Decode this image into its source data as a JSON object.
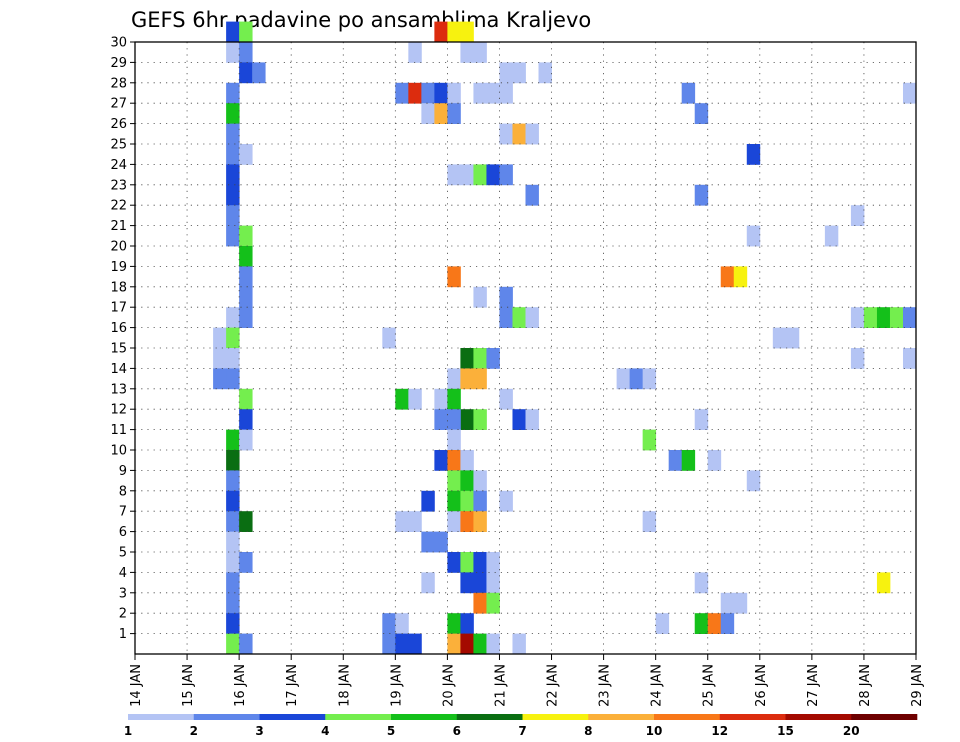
{
  "chart_data": {
    "type": "heatmap",
    "title": "GEFS 6hr padavine po ansamblima Kraljevo",
    "ylabel": "",
    "xlabel": "",
    "grid": "dotted",
    "y_ticks": [
      "1",
      "2",
      "3",
      "4",
      "5",
      "6",
      "7",
      "8",
      "9",
      "10",
      "11",
      "12",
      "13",
      "14",
      "15",
      "16",
      "17",
      "18",
      "19",
      "20",
      "21",
      "22",
      "23",
      "24",
      "25",
      "26",
      "27",
      "28",
      "29",
      "30"
    ],
    "ylim": [
      0,
      30
    ],
    "x_ticks": [
      "14 JAN",
      "15 JAN",
      "16 JAN",
      "17 JAN",
      "18 JAN",
      "19 JAN",
      "20 JAN",
      "21 JAN",
      "22 JAN",
      "23 JAN",
      "24 JAN",
      "25 JAN",
      "26 JAN",
      "27 JAN",
      "28 JAN",
      "29 JAN"
    ],
    "xlim_days": [
      14,
      29
    ],
    "time_step_hours": 6,
    "colorbar": {
      "labels": [
        "1",
        "2",
        "3",
        "4",
        "5",
        "6",
        "7",
        "8",
        "10",
        "12",
        "15",
        "20"
      ],
      "colors": [
        "#b4c4f4",
        "#5f86ea",
        "#1a46d8",
        "#74ee4e",
        "#14c01a",
        "#0a6e12",
        "#f7f20f",
        "#fbb03a",
        "#f87718",
        "#dc2c0e",
        "#a40a00",
        "#6e0000"
      ]
    },
    "cells_note": "Each cell: [day, ensemble_member, precip_class_index]. Day is the start of the 6-hour bin; class index maps into colorbar.colors.",
    "cells": [
      [
        15.75,
        30,
        2
      ],
      [
        16.0,
        30,
        3
      ],
      [
        15.75,
        29,
        0
      ],
      [
        16.0,
        29,
        1
      ],
      [
        16.0,
        28,
        2
      ],
      [
        16.25,
        28,
        1
      ],
      [
        15.75,
        27,
        1
      ],
      [
        15.75,
        26,
        4
      ],
      [
        15.75,
        25,
        1
      ],
      [
        15.75,
        24,
        1
      ],
      [
        16.0,
        24,
        0
      ],
      [
        15.75,
        23,
        2
      ],
      [
        15.75,
        22,
        2
      ],
      [
        15.75,
        21,
        1
      ],
      [
        15.75,
        20,
        1
      ],
      [
        16.0,
        20,
        3
      ],
      [
        16.0,
        19,
        4
      ],
      [
        16.0,
        18,
        1
      ],
      [
        16.0,
        17,
        1
      ],
      [
        15.75,
        16,
        0
      ],
      [
        16.0,
        16,
        1
      ],
      [
        15.5,
        15,
        0
      ],
      [
        15.75,
        15,
        3
      ],
      [
        15.5,
        14,
        0
      ],
      [
        15.75,
        14,
        0
      ],
      [
        15.5,
        13,
        1
      ],
      [
        15.75,
        13,
        1
      ],
      [
        16.0,
        12,
        3
      ],
      [
        16.0,
        11,
        2
      ],
      [
        15.75,
        10,
        4
      ],
      [
        16.0,
        10,
        0
      ],
      [
        15.75,
        9,
        5
      ],
      [
        15.75,
        8,
        1
      ],
      [
        15.75,
        7,
        2
      ],
      [
        15.75,
        6,
        1
      ],
      [
        16.0,
        6,
        5
      ],
      [
        15.75,
        5,
        0
      ],
      [
        15.75,
        4,
        0
      ],
      [
        16.0,
        4,
        1
      ],
      [
        15.75,
        3,
        1
      ],
      [
        15.75,
        2,
        1
      ],
      [
        15.75,
        1,
        2
      ],
      [
        15.75,
        0,
        3
      ],
      [
        16.0,
        0,
        1
      ],
      [
        19.75,
        30,
        9
      ],
      [
        20.0,
        30,
        6
      ],
      [
        20.25,
        30,
        6
      ],
      [
        19.25,
        29,
        0
      ],
      [
        20.25,
        29,
        0
      ],
      [
        20.5,
        29,
        0
      ],
      [
        21.0,
        28,
        0
      ],
      [
        21.25,
        28,
        0
      ],
      [
        21.75,
        28,
        0
      ],
      [
        19.0,
        27,
        1
      ],
      [
        19.25,
        27,
        9
      ],
      [
        19.5,
        27,
        1
      ],
      [
        19.75,
        27,
        2
      ],
      [
        20.0,
        27,
        0
      ],
      [
        20.5,
        27,
        0
      ],
      [
        20.75,
        27,
        0
      ],
      [
        21.0,
        27,
        0
      ],
      [
        19.5,
        26,
        0
      ],
      [
        19.75,
        26,
        7
      ],
      [
        20.0,
        26,
        1
      ],
      [
        21.0,
        25,
        0
      ],
      [
        21.25,
        25,
        7
      ],
      [
        21.5,
        25,
        0
      ],
      [
        20.0,
        23,
        0
      ],
      [
        20.25,
        23,
        0
      ],
      [
        20.5,
        23,
        3
      ],
      [
        20.75,
        23,
        2
      ],
      [
        21.0,
        23,
        1
      ],
      [
        21.5,
        22,
        1
      ],
      [
        20.5,
        17,
        0
      ],
      [
        21.0,
        17,
        1
      ],
      [
        21.0,
        16,
        1
      ],
      [
        21.25,
        16,
        3
      ],
      [
        21.5,
        16,
        0
      ],
      [
        20.0,
        18,
        8
      ],
      [
        18.75,
        15,
        0
      ],
      [
        20.25,
        14,
        5
      ],
      [
        20.5,
        14,
        3
      ],
      [
        20.75,
        14,
        1
      ],
      [
        20.0,
        13,
        0
      ],
      [
        20.25,
        13,
        7
      ],
      [
        20.5,
        13,
        7
      ],
      [
        19.0,
        12,
        4
      ],
      [
        19.25,
        12,
        0
      ],
      [
        19.75,
        12,
        0
      ],
      [
        20.0,
        12,
        4
      ],
      [
        20.25,
        11,
        5
      ],
      [
        20.5,
        11,
        3
      ],
      [
        19.75,
        11,
        1
      ],
      [
        20.0,
        11,
        1
      ],
      [
        21.0,
        12,
        0
      ],
      [
        21.25,
        11,
        2
      ],
      [
        21.5,
        11,
        0
      ],
      [
        20.0,
        10,
        0
      ],
      [
        19.75,
        9,
        2
      ],
      [
        20.0,
        9,
        8
      ],
      [
        20.25,
        9,
        0
      ],
      [
        20.0,
        8,
        3
      ],
      [
        20.25,
        8,
        4
      ],
      [
        20.5,
        8,
        0
      ],
      [
        19.5,
        7,
        2
      ],
      [
        20.0,
        7,
        4
      ],
      [
        20.25,
        7,
        3
      ],
      [
        20.5,
        7,
        1
      ],
      [
        21.0,
        7,
        0
      ],
      [
        19.0,
        6,
        0
      ],
      [
        19.25,
        6,
        0
      ],
      [
        20.0,
        6,
        0
      ],
      [
        20.25,
        6,
        8
      ],
      [
        20.5,
        6,
        7
      ],
      [
        19.5,
        5,
        1
      ],
      [
        19.75,
        5,
        1
      ],
      [
        20.0,
        4,
        2
      ],
      [
        20.25,
        4,
        3
      ],
      [
        20.5,
        4,
        2
      ],
      [
        20.75,
        4,
        0
      ],
      [
        19.5,
        3,
        0
      ],
      [
        20.25,
        3,
        2
      ],
      [
        20.5,
        3,
        2
      ],
      [
        20.75,
        3,
        0
      ],
      [
        20.5,
        2,
        8
      ],
      [
        20.75,
        2,
        3
      ],
      [
        18.75,
        1,
        1
      ],
      [
        19.0,
        1,
        0
      ],
      [
        20.0,
        1,
        4
      ],
      [
        20.25,
        1,
        2
      ],
      [
        18.75,
        0,
        1
      ],
      [
        19.0,
        0,
        2
      ],
      [
        19.25,
        0,
        2
      ],
      [
        20.0,
        0,
        7
      ],
      [
        20.25,
        0,
        10
      ],
      [
        20.5,
        0,
        4
      ],
      [
        20.75,
        0,
        0
      ],
      [
        21.25,
        0,
        0
      ],
      [
        24.5,
        27,
        1
      ],
      [
        24.75,
        26,
        1
      ],
      [
        28.75,
        27,
        0
      ],
      [
        25.75,
        24,
        2
      ],
      [
        24.75,
        22,
        1
      ],
      [
        27.75,
        21,
        0
      ],
      [
        25.75,
        20,
        0
      ],
      [
        27.25,
        20,
        0
      ],
      [
        25.25,
        18,
        8
      ],
      [
        25.5,
        18,
        6
      ],
      [
        27.75,
        16,
        0
      ],
      [
        28.0,
        16,
        3
      ],
      [
        28.25,
        16,
        4
      ],
      [
        28.5,
        16,
        3
      ],
      [
        28.75,
        16,
        1
      ],
      [
        26.25,
        15,
        0
      ],
      [
        26.5,
        15,
        0
      ],
      [
        27.75,
        14,
        0
      ],
      [
        28.75,
        14,
        0
      ],
      [
        23.25,
        13,
        0
      ],
      [
        23.5,
        13,
        1
      ],
      [
        23.75,
        13,
        0
      ],
      [
        23.75,
        10,
        3
      ],
      [
        24.75,
        11,
        0
      ],
      [
        24.25,
        9,
        1
      ],
      [
        24.5,
        9,
        4
      ],
      [
        25.0,
        9,
        0
      ],
      [
        25.75,
        8,
        0
      ],
      [
        23.75,
        6,
        0
      ],
      [
        28.25,
        3,
        6
      ],
      [
        24.75,
        3,
        0
      ],
      [
        25.25,
        2,
        0
      ],
      [
        25.5,
        2,
        0
      ],
      [
        24.0,
        1,
        0
      ],
      [
        24.75,
        1,
        4
      ],
      [
        25.0,
        1,
        8
      ],
      [
        25.25,
        1,
        1
      ]
    ]
  }
}
